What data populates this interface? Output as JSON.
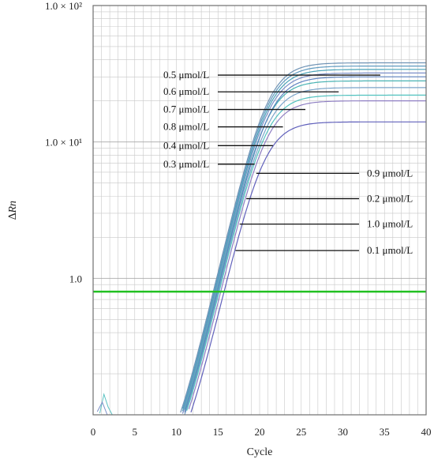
{
  "chart_data": {
    "type": "line",
    "xlabel": "Cycle",
    "ylabel": "∆Rn",
    "xlim": [
      0,
      40
    ],
    "ylim": [
      0.1,
      100
    ],
    "y_scale": "log",
    "grid": true,
    "x_ticks": [
      "0",
      "5",
      "10",
      "15",
      "20",
      "25",
      "30",
      "35",
      "40"
    ],
    "y_ticks": [
      {
        "value": 100,
        "label": "1.0 × 10²"
      },
      {
        "value": 10,
        "label": "1.0 × 10¹"
      },
      {
        "value": 1,
        "label": "1.0"
      }
    ],
    "threshold": {
      "value": 0.8,
      "color": "#22c022"
    },
    "series": [
      {
        "name": "0.5 μmol/L",
        "color": "#6f93b5",
        "plateau": 38,
        "ct": 14.5
      },
      {
        "name": "0.6 μmol/L",
        "color": "#5f9ac0",
        "plateau": 36,
        "ct": 14.6
      },
      {
        "name": "0.7 μmol/L",
        "color": "#4aa3b8",
        "plateau": 34,
        "ct": 14.7
      },
      {
        "name": "0.8 μmol/L",
        "color": "#7b8fc8",
        "plateau": 32,
        "ct": 14.8
      },
      {
        "name": "0.4 μmol/L",
        "color": "#49b3b3",
        "plateau": 28,
        "ct": 14.9
      },
      {
        "name": "0.3 μmol/L",
        "color": "#7aa4c9",
        "plateau": 25,
        "ct": 15.1
      },
      {
        "name": "0.9 μmol/L",
        "color": "#52c2bf",
        "plateau": 22,
        "ct": 15.2
      },
      {
        "name": "0.2 μmol/L",
        "color": "#8f7fc3",
        "plateau": 20,
        "ct": 15.4
      },
      {
        "name": "1.0 μmol/L",
        "color": "#5d82c0",
        "plateau": 30,
        "ct": 15.0
      },
      {
        "name": "0.1 μmol/L",
        "color": "#6060bb",
        "plateau": 14,
        "ct": 15.8
      }
    ],
    "annotations": [
      {
        "label": "0.5 μmol/L",
        "side": "left",
        "cycle": 34.5,
        "value": 30.9
      },
      {
        "label": "0.6 μmol/L",
        "side": "left",
        "cycle": 29.5,
        "value": 23.3
      },
      {
        "label": "0.7 μmol/L",
        "side": "left",
        "cycle": 25.5,
        "value": 17.3
      },
      {
        "label": "0.8 μmol/L",
        "side": "left",
        "cycle": 22.8,
        "value": 12.9
      },
      {
        "label": "0.4 μmol/L",
        "side": "left",
        "cycle": 21.6,
        "value": 9.4
      },
      {
        "label": "0.3 μmol/L",
        "side": "left",
        "cycle": 19.4,
        "value": 6.87
      },
      {
        "label": "0.9 μmol/L",
        "side": "right",
        "cycle": 19.6,
        "value": 5.89
      },
      {
        "label": "0.2 μmol/L",
        "side": "right",
        "cycle": 18.4,
        "value": 3.84
      },
      {
        "label": "1.0 μmol/L",
        "side": "right",
        "cycle": 17.6,
        "value": 2.5
      },
      {
        "label": "0.1 μmol/L",
        "side": "right",
        "cycle": 17.1,
        "value": 1.6
      }
    ]
  }
}
